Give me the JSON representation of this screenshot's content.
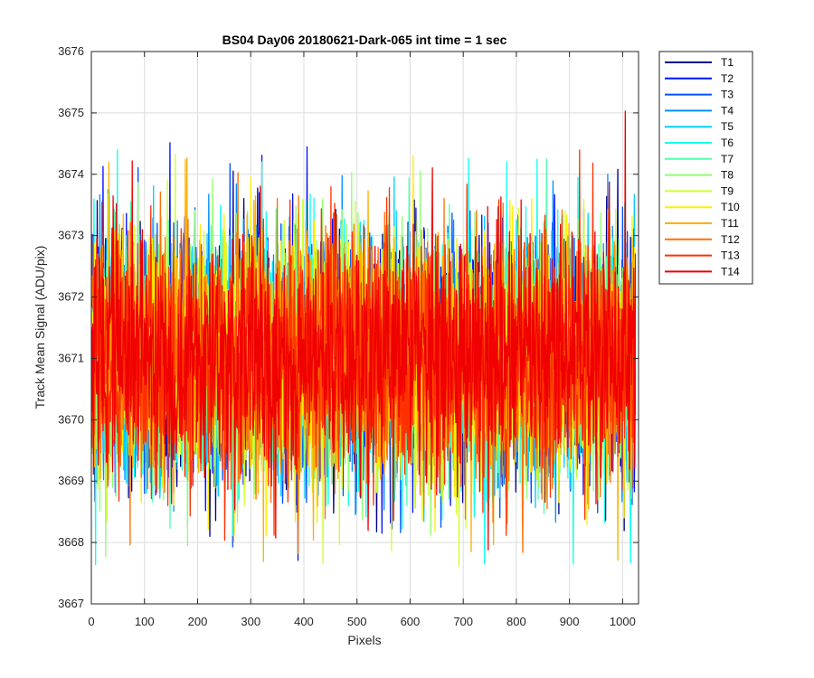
{
  "chart_data": {
    "type": "line",
    "title": "BS04 Day06 20180621-Dark-065 int time = 1 sec",
    "xlabel": "Pixels",
    "ylabel": "Track Mean Signal (ADU/pix)",
    "xlim": [
      0,
      1030
    ],
    "ylim": [
      3667,
      3676
    ],
    "xticks": [
      "0",
      "100",
      "200",
      "300",
      "400",
      "500",
      "600",
      "700",
      "800",
      "900",
      "1000"
    ],
    "yticks": [
      "3667",
      "3668",
      "3669",
      "3670",
      "3671",
      "3672",
      "3673",
      "3674",
      "3675",
      "3676"
    ],
    "grid": true,
    "legend_location": "outside-top-right",
    "series_summary": {
      "n_points": 1024,
      "mean": 3671.0,
      "typical_range": [
        3669.5,
        3672.8
      ],
      "max_observed": 3675.25,
      "min_observed": 3667.6
    },
    "series": [
      {
        "name": "T1",
        "color": "#00008f"
      },
      {
        "name": "T2",
        "color": "#0010ff"
      },
      {
        "name": "T3",
        "color": "#0050ff"
      },
      {
        "name": "T4",
        "color": "#0090ff"
      },
      {
        "name": "T5",
        "color": "#00d0ff"
      },
      {
        "name": "T6",
        "color": "#10ffef"
      },
      {
        "name": "T7",
        "color": "#50ffaf"
      },
      {
        "name": "T8",
        "color": "#90ff6f"
      },
      {
        "name": "T9",
        "color": "#cfff30"
      },
      {
        "name": "T10",
        "color": "#ffef00"
      },
      {
        "name": "T11",
        "color": "#ffaf00"
      },
      {
        "name": "T12",
        "color": "#ff7000"
      },
      {
        "name": "T13",
        "color": "#ff3000"
      },
      {
        "name": "T14",
        "color": "#f00000"
      }
    ]
  }
}
